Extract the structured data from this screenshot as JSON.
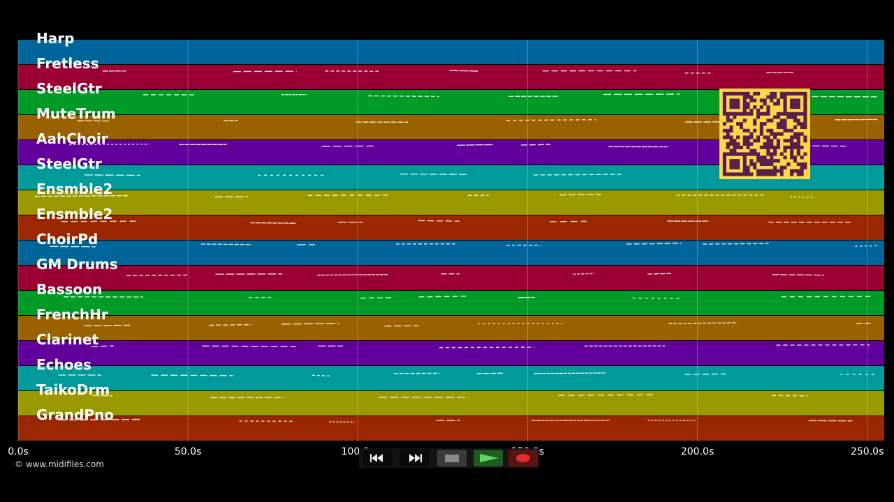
{
  "tracks": [
    {
      "name": "Harp",
      "color": "#00659a"
    },
    {
      "name": "Fretless",
      "color": "#9a0034"
    },
    {
      "name": "SteelGtr",
      "color": "#009a27"
    },
    {
      "name": "MuteTrum",
      "color": "#9a6100"
    },
    {
      "name": "AahChoir",
      "color": "#61009a"
    },
    {
      "name": "SteelGtr",
      "color": "#009a9a"
    },
    {
      "name": "Ensmble2",
      "color": "#9a9a00"
    },
    {
      "name": "Ensmble2",
      "color": "#9a2700"
    },
    {
      "name": "ChoirPd",
      "color": "#00659a"
    },
    {
      "name": "GM Drums",
      "color": "#9a0034"
    },
    {
      "name": "Bassoon",
      "color": "#009a27"
    },
    {
      "name": "FrenchHr",
      "color": "#9a6100"
    },
    {
      "name": "Clarinet",
      "color": "#61009a"
    },
    {
      "name": "Echoes",
      "color": "#009a9a"
    },
    {
      "name": "TaikoDrm",
      "color": "#9a9a00"
    },
    {
      "name": "GrandPno",
      "color": "#9a2700"
    }
  ],
  "timeline": {
    "max_seconds": 255,
    "ticks": [
      {
        "value": 0,
        "label": "0.0s"
      },
      {
        "value": 50,
        "label": "50.0s"
      },
      {
        "value": 100,
        "label": "100.0s"
      },
      {
        "value": 150,
        "label": "150.0s"
      },
      {
        "value": 200,
        "label": "200.0s"
      },
      {
        "value": 250,
        "label": "250.0s"
      }
    ]
  },
  "copyright": "© www.midifiles.com",
  "transport": {
    "rewind_icon": "rewind-icon",
    "fast_forward_icon": "fast-forward-icon",
    "stop_icon": "stop-icon",
    "play_icon": "play-icon",
    "record_icon": "record-icon",
    "play_color": "#3fc43f",
    "record_color": "#e03030"
  },
  "overlay": {
    "qr_color": "#ffd84a",
    "qr_dark": "#5a1f4a"
  }
}
